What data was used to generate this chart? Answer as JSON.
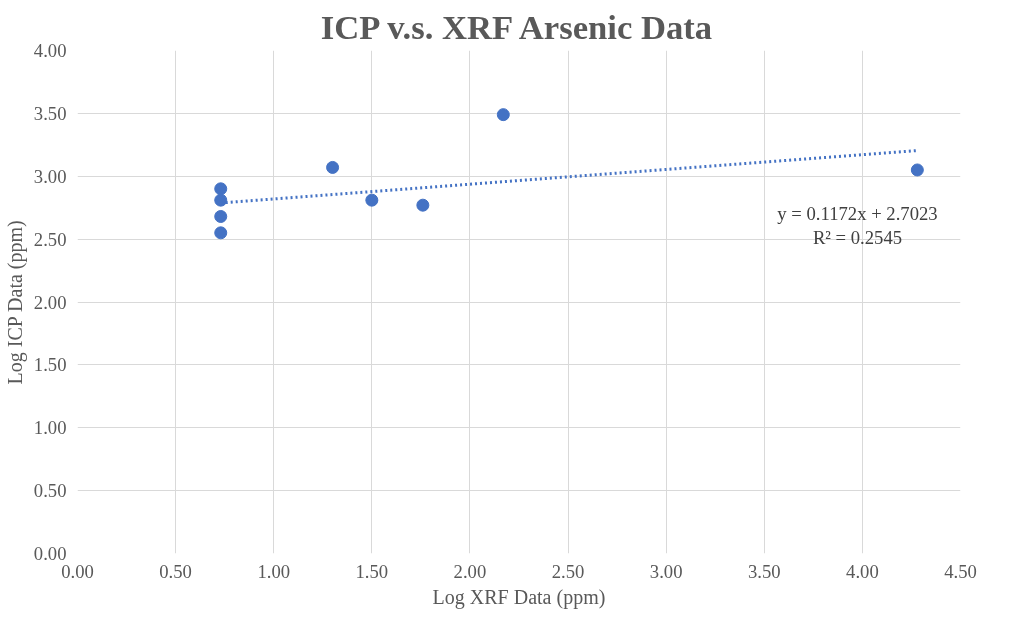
{
  "chart_data": {
    "type": "scatter",
    "title": "ICP v.s. XRF Arsenic Data",
    "xlabel": "Log XRF Data (ppm)",
    "ylabel": "Log ICP Data (ppm)",
    "series": [
      {
        "color": "#4472c4",
        "marker": "circle",
        "x": [
          0.73,
          0.73,
          0.73,
          0.73,
          1.3,
          1.5,
          1.76,
          2.17,
          4.28
        ],
        "values": [
          2.9,
          2.81,
          2.68,
          2.55,
          3.07,
          2.81,
          2.77,
          3.49,
          3.05
        ]
      },
      {
        "type": "line",
        "color": "#4472c4",
        "line_style": "dotted",
        "marker": "none",
        "x": [
          0.73,
          4.28
        ],
        "values": [
          2.788,
          3.204
        ]
      }
    ],
    "xlim": [
      0,
      4.5
    ],
    "xticks": [
      {
        "value": 0,
        "label": "0.00"
      },
      {
        "value": 0.5,
        "label": "0.50"
      },
      {
        "value": 1,
        "label": "1.00"
      },
      {
        "value": 1.5,
        "label": "1.50"
      },
      {
        "value": 2,
        "label": "2.00"
      },
      {
        "value": 2.5,
        "label": "2.50"
      },
      {
        "value": 3,
        "label": "3.00"
      },
      {
        "value": 3.5,
        "label": "3.50"
      },
      {
        "value": 4,
        "label": "4.00"
      },
      {
        "value": 4.5,
        "label": "4.50"
      }
    ],
    "ylim": [
      0,
      4
    ],
    "yticks": [
      {
        "value": 0,
        "label": "0.00"
      },
      {
        "value": 0.5,
        "label": "0.50"
      },
      {
        "value": 1,
        "label": "1.00"
      },
      {
        "value": 1.5,
        "label": "1.50"
      },
      {
        "value": 2,
        "label": "2.00"
      },
      {
        "value": 2.5,
        "label": "2.50"
      },
      {
        "value": 3,
        "label": "3.00"
      },
      {
        "value": 3.5,
        "label": "3.50"
      },
      {
        "value": 4,
        "label": "4.00"
      }
    ],
    "grid": true,
    "annotations": [
      "y = 0.1172x + 2.7023",
      "R² = 0.2545"
    ]
  }
}
